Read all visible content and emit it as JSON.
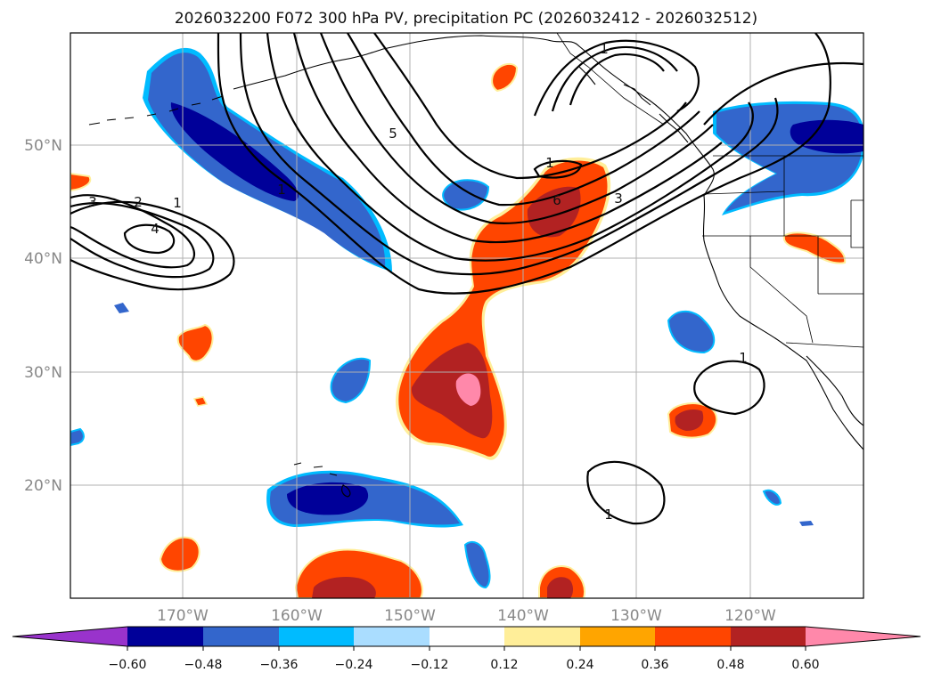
{
  "title": "2026032200 F072 300 hPa PV, precipitation PC (2026032412 - 2026032512)",
  "map": {
    "lat_labels": [
      "50°N",
      "40°N",
      "30°N",
      "20°N"
    ],
    "lon_labels": [
      "170°W",
      "160°W",
      "150°W",
      "140°W",
      "130°W",
      "120°W"
    ]
  },
  "pv_contour_labels": [
    "3",
    "2",
    "1",
    "4",
    "1",
    "5",
    "1",
    "6",
    "3",
    "1",
    "1",
    "1"
  ],
  "colorbar": {
    "tick_labels": [
      "−0.60",
      "−0.48",
      "−0.36",
      "−0.24",
      "−0.12",
      "0.12",
      "0.24",
      "0.36",
      "0.48",
      "0.60"
    ],
    "colors": {
      "below_min": "#9933cc",
      "c1": "#000099",
      "c2": "#3366cc",
      "c3": "#00bbff",
      "c4": "#aaddff",
      "c5": "#ffffff",
      "c6": "#ffee99",
      "c7": "#ffa500",
      "c8": "#ff4500",
      "c9": "#b22222",
      "above_max": "#ff88aa"
    }
  }
}
